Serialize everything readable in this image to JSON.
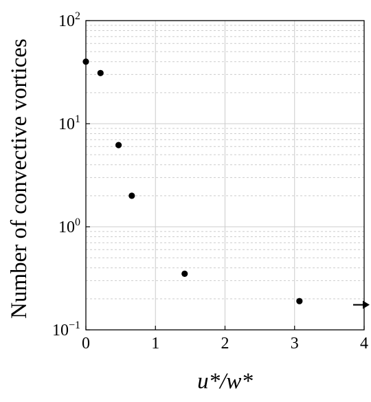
{
  "chart_data": {
    "type": "scatter",
    "title": "",
    "xlabel": "u*/w*",
    "ylabel": "Number of convective vortices",
    "xlim": [
      0,
      4
    ],
    "ylim": [
      0.1,
      100
    ],
    "yscale": "log",
    "grid": true,
    "x_ticks": [
      0,
      1,
      2,
      3,
      4
    ],
    "x_tick_labels": [
      "0",
      "1",
      "2",
      "3",
      "4"
    ],
    "y_ticks": [
      {
        "value": 0.1,
        "base": "10",
        "exp": "−1"
      },
      {
        "value": 1,
        "base": "10",
        "exp": "0"
      },
      {
        "value": 10,
        "base": "10",
        "exp": "1"
      },
      {
        "value": 100,
        "base": "10",
        "exp": "2"
      }
    ],
    "points": [
      {
        "x": 0.0,
        "y": 40
      },
      {
        "x": 0.21,
        "y": 31
      },
      {
        "x": 0.47,
        "y": 6.2
      },
      {
        "x": 0.66,
        "y": 2.0
      },
      {
        "x": 1.42,
        "y": 0.35
      },
      {
        "x": 3.07,
        "y": 0.19
      }
    ],
    "annotations": [
      {
        "type": "arrow",
        "direction": "right",
        "x": 4.0,
        "y": 0.175,
        "meaning": "point beyond x-axis range"
      }
    ],
    "marker_color": "#000000",
    "grid_color": "#cccccc"
  }
}
